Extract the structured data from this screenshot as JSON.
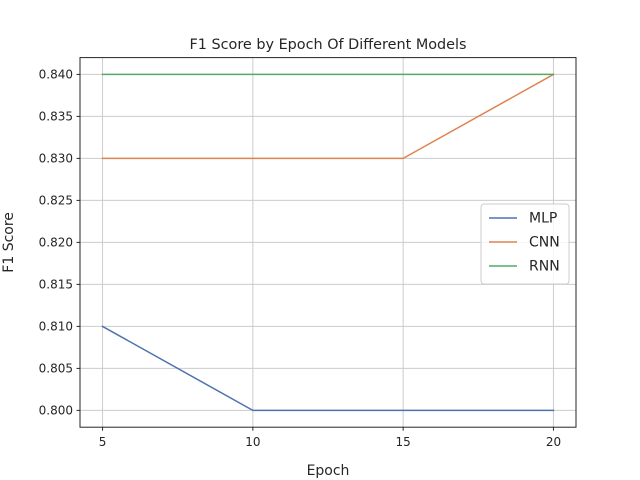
{
  "chart_data": {
    "type": "line",
    "title": "F1 Score by Epoch Of Different Models",
    "xlabel": "Epoch",
    "ylabel": "F1 Score",
    "x": [
      5,
      10,
      15,
      20
    ],
    "xticks": [
      5,
      10,
      15,
      20
    ],
    "xlim": [
      4.25,
      20.75
    ],
    "yticks": [
      0.8,
      0.805,
      0.81,
      0.815,
      0.82,
      0.825,
      0.83,
      0.835,
      0.84
    ],
    "ytick_labels": [
      "0.800",
      "0.805",
      "0.810",
      "0.815",
      "0.820",
      "0.825",
      "0.830",
      "0.835",
      "0.840"
    ],
    "ylim": [
      0.798,
      0.842
    ],
    "grid": true,
    "legend_position": "center-right",
    "series": [
      {
        "name": "MLP",
        "values": [
          0.81,
          0.8,
          0.8,
          0.8
        ],
        "color": "#4c72b0"
      },
      {
        "name": "CNN",
        "values": [
          0.83,
          0.83,
          0.83,
          0.84
        ],
        "color": "#dd8452"
      },
      {
        "name": "RNN",
        "values": [
          0.84,
          0.84,
          0.84,
          0.84
        ],
        "color": "#55a868"
      }
    ]
  }
}
